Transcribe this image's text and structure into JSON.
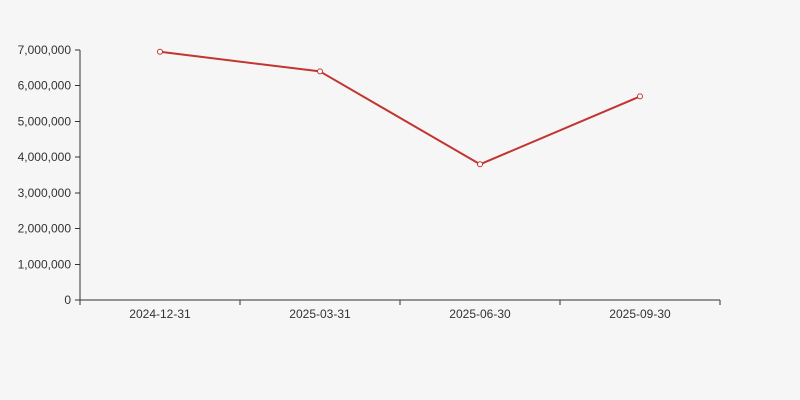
{
  "chart_data": {
    "type": "line",
    "categories": [
      "2024-12-31",
      "2025-03-31",
      "2025-06-30",
      "2025-09-30"
    ],
    "values": [
      6950000,
      6400000,
      3800000,
      5700000
    ],
    "ylim": [
      0,
      7000000
    ],
    "ytick_step": 1000000,
    "ytick_labels": [
      "0",
      "1,000,000",
      "2,000,000",
      "3,000,000",
      "4,000,000",
      "5,000,000",
      "6,000,000",
      "7,000,000"
    ],
    "title": "",
    "xlabel": "",
    "ylabel": "",
    "grid": false,
    "legend": false,
    "marker": "hollow-circle",
    "colors": {
      "line": "#c23531",
      "marker_fill": "#ffffff",
      "axis": "#333333",
      "label": "#333333",
      "background": "#f6f6f6"
    }
  }
}
